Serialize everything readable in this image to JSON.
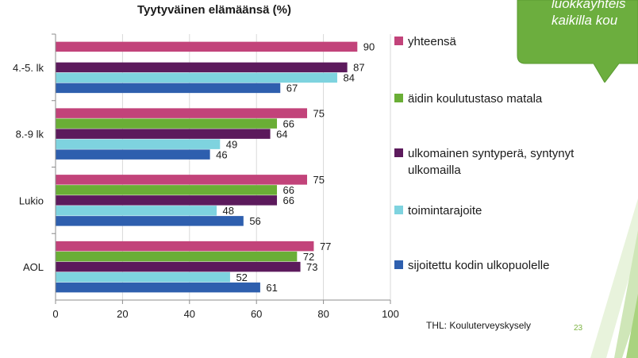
{
  "slide": {
    "callout_text_lines": [
      "",
      "luokkayhteis",
      "kaikilla kou"
    ],
    "source": "THL: Kouluterveyskysely",
    "page_number": "23",
    "colors": {
      "accent_green": "#7cb342",
      "callout_green": "#6cae3e"
    }
  },
  "chart_data": {
    "type": "bar",
    "orientation": "horizontal",
    "title": "Tyytyväinen elämäänsä (%)",
    "categories": [
      "4.-5. lk",
      "8.-9 lk",
      "Lukio",
      "AOL"
    ],
    "series": [
      {
        "name": "yhteensä",
        "color": "#c2437a",
        "values": [
          90,
          75,
          75,
          77
        ]
      },
      {
        "name": "äidin koulutustaso matala",
        "color": "#6aae36",
        "values": [
          null,
          66,
          66,
          72
        ]
      },
      {
        "name": "ulkomainen syntyperä, syntynyt ulkomailla",
        "color": "#5c1a5c",
        "values": [
          87,
          64,
          66,
          73
        ]
      },
      {
        "name": "toimintarajoite",
        "color": "#7ed3df",
        "values": [
          84,
          49,
          48,
          52
        ]
      },
      {
        "name": "sijoitettu kodin ulkopuolelle",
        "color": "#2e5fae",
        "values": [
          67,
          46,
          56,
          61
        ]
      }
    ],
    "xlim": [
      0,
      100
    ],
    "xticks": [
      "0",
      "20",
      "40",
      "60",
      "80",
      "100"
    ],
    "legend_position": "right",
    "grid": true
  }
}
